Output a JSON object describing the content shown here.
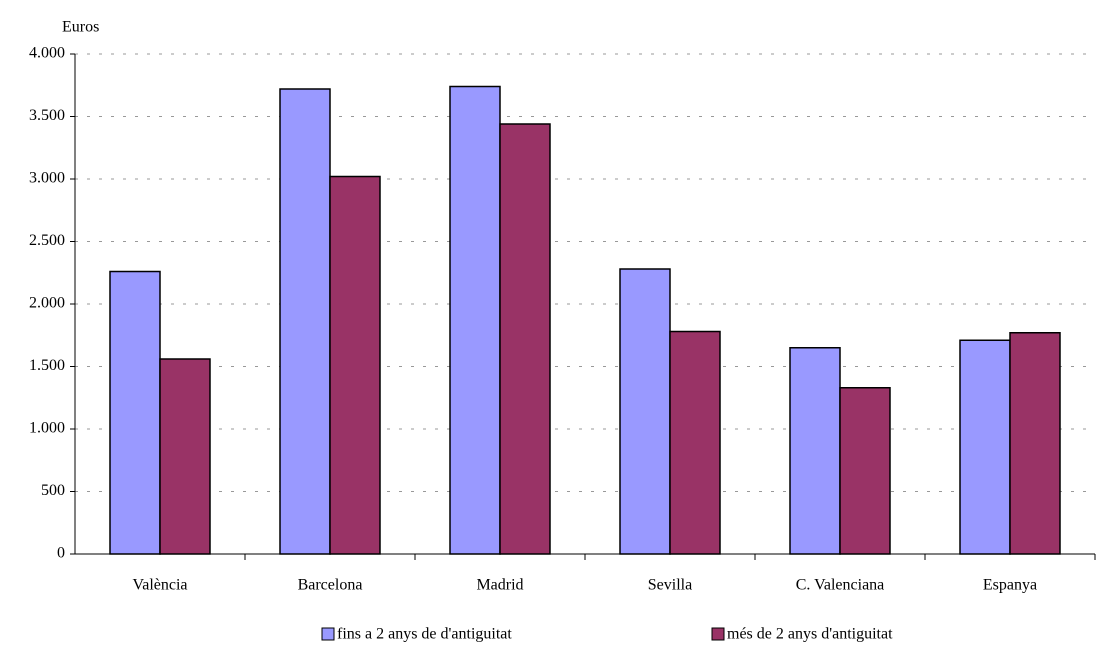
{
  "chart_data": {
    "type": "bar",
    "ylabel": "Euros",
    "categories": [
      "València",
      "Barcelona",
      "Madrid",
      "Sevilla",
      "C. Valenciana",
      "Espanya"
    ],
    "series": [
      {
        "name": "fins a 2 anys de  d'antiguitat",
        "color": "#9999ff",
        "values": [
          2260,
          3720,
          3740,
          2280,
          1650,
          1710
        ]
      },
      {
        "name": "més de 2 anys d'antiguitat",
        "color": "#993366",
        "values": [
          1560,
          3020,
          3440,
          1780,
          1330,
          1770
        ]
      }
    ],
    "ylim": [
      0,
      4000
    ],
    "yticks": [
      0,
      500,
      {
        "value": 1000,
        "label": "1.000"
      },
      {
        "value": 1500,
        "label": "1.500"
      },
      {
        "value": 2000,
        "label": "2.000"
      },
      {
        "value": 2500,
        "label": "2.500"
      },
      {
        "value": 3000,
        "label": "3.000"
      },
      {
        "value": 3500,
        "label": "3.500"
      },
      {
        "value": 4000,
        "label": "4.000"
      }
    ],
    "grid": true
  }
}
